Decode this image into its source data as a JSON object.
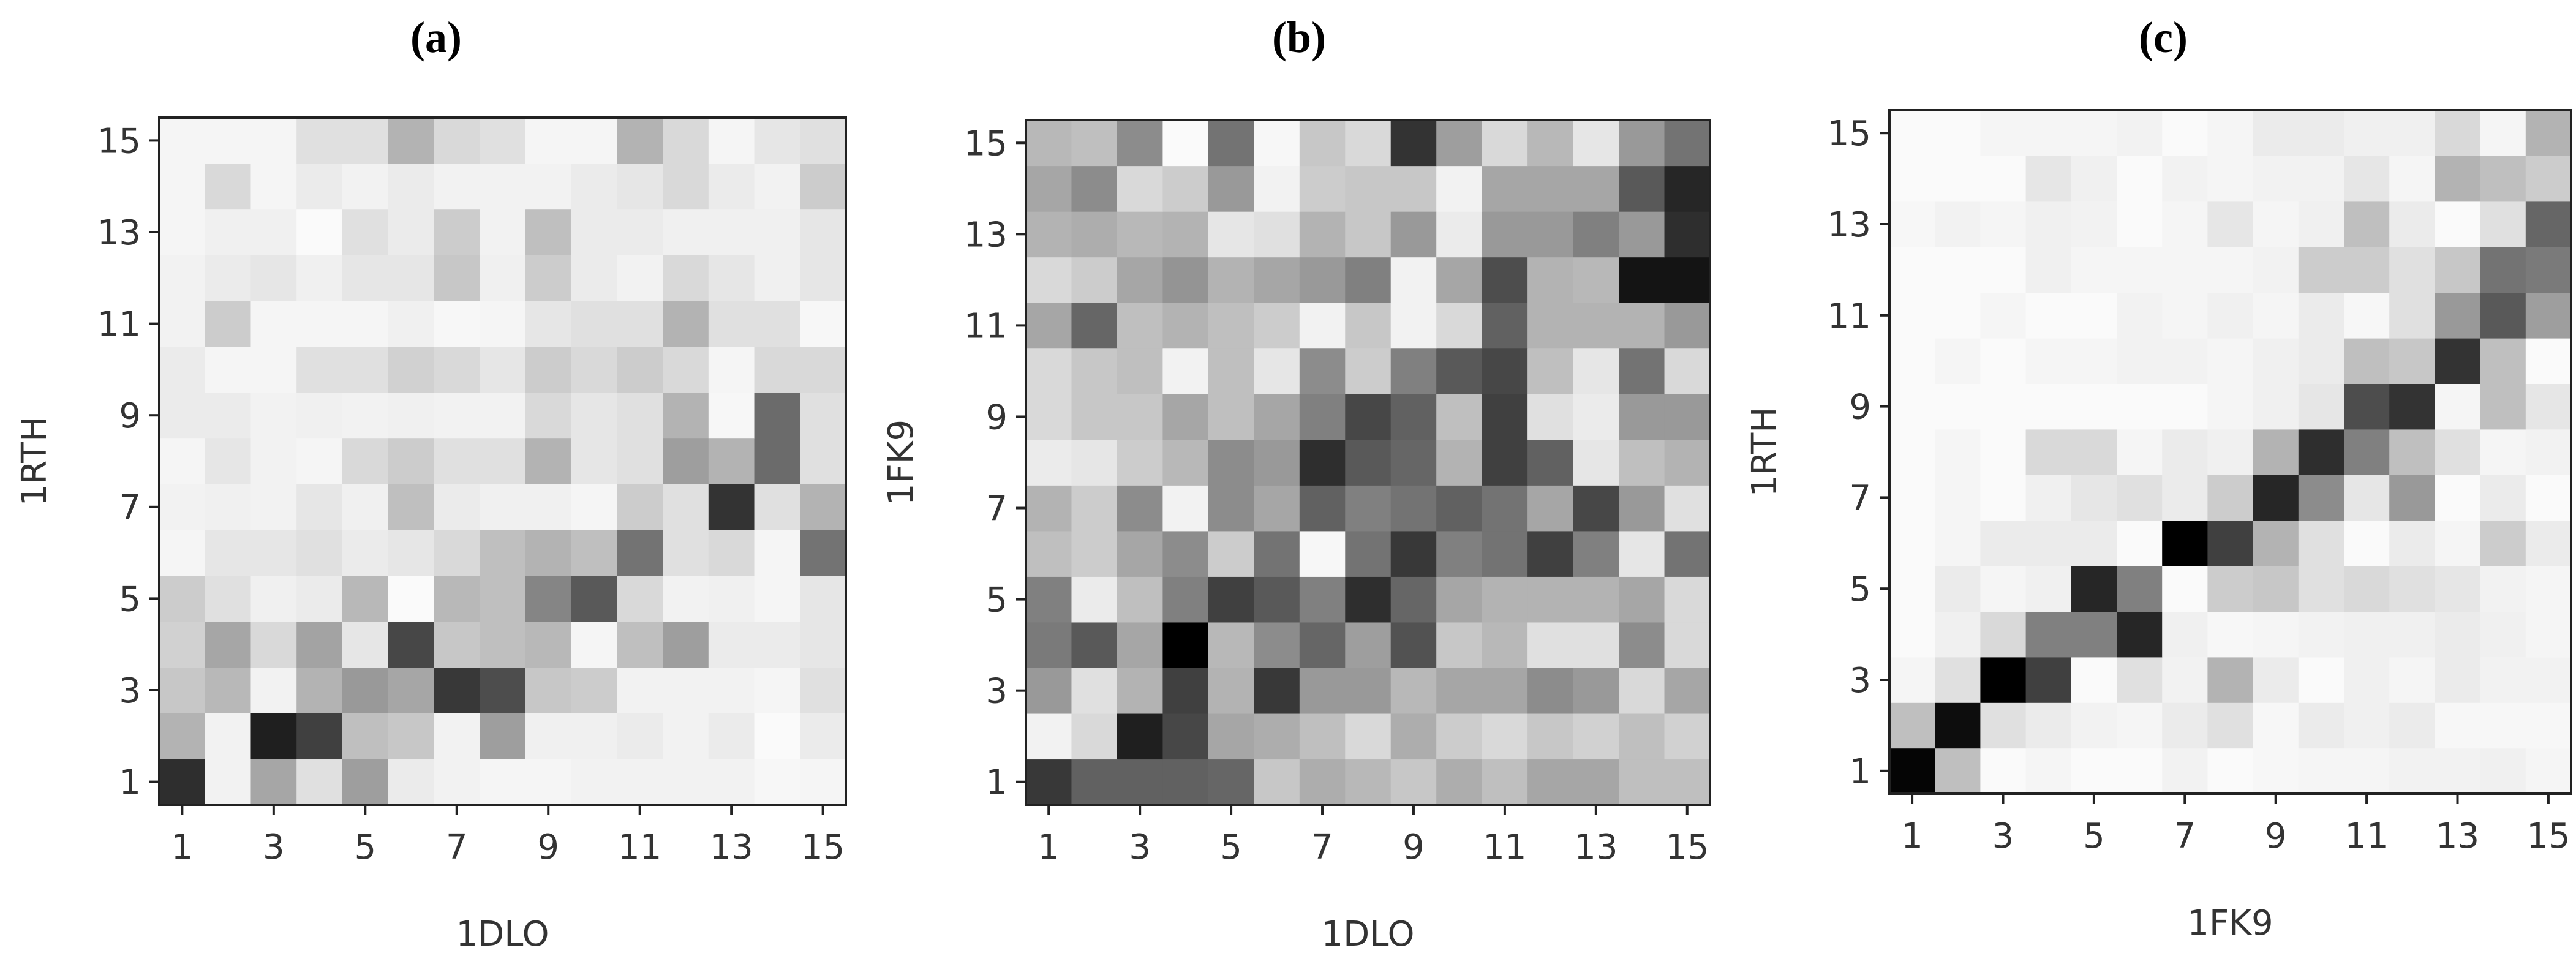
{
  "chart_data": [
    {
      "type": "heatmap",
      "title": "(a)",
      "xlabel": "1DLO",
      "ylabel": "1RTH",
      "x_ticks": [
        "1",
        "3",
        "5",
        "7",
        "9",
        "11",
        "13",
        "15"
      ],
      "y_ticks": [
        "1",
        "3",
        "5",
        "7",
        "9",
        "11",
        "13",
        "15"
      ],
      "colormap": "white-to-black",
      "grid": false,
      "values": [
        [
          0.82,
          0.05,
          0.35,
          0.12,
          0.38,
          0.08,
          0.05,
          0.04,
          0.04,
          0.05,
          0.05,
          0.05,
          0.05,
          0.03,
          0.04
        ],
        [
          0.3,
          0.05,
          0.88,
          0.75,
          0.25,
          0.22,
          0.05,
          0.38,
          0.06,
          0.06,
          0.08,
          0.05,
          0.08,
          0.02,
          0.08
        ],
        [
          0.22,
          0.28,
          0.05,
          0.3,
          0.4,
          0.35,
          0.78,
          0.7,
          0.22,
          0.2,
          0.05,
          0.05,
          0.05,
          0.04,
          0.12
        ],
        [
          0.18,
          0.35,
          0.15,
          0.36,
          0.1,
          0.72,
          0.22,
          0.25,
          0.28,
          0.04,
          0.25,
          0.38,
          0.08,
          0.08,
          0.1
        ],
        [
          0.2,
          0.12,
          0.06,
          0.08,
          0.28,
          0.02,
          0.28,
          0.25,
          0.48,
          0.65,
          0.15,
          0.05,
          0.06,
          0.04,
          0.1
        ],
        [
          0.04,
          0.1,
          0.1,
          0.12,
          0.08,
          0.1,
          0.15,
          0.25,
          0.3,
          0.25,
          0.55,
          0.12,
          0.15,
          0.04,
          0.55
        ],
        [
          0.05,
          0.06,
          0.05,
          0.1,
          0.06,
          0.25,
          0.08,
          0.06,
          0.06,
          0.04,
          0.2,
          0.12,
          0.8,
          0.12,
          0.3
        ],
        [
          0.04,
          0.1,
          0.05,
          0.04,
          0.15,
          0.2,
          0.12,
          0.12,
          0.3,
          0.1,
          0.12,
          0.38,
          0.3,
          0.58,
          0.12
        ],
        [
          0.08,
          0.08,
          0.05,
          0.06,
          0.05,
          0.06,
          0.05,
          0.05,
          0.15,
          0.1,
          0.12,
          0.3,
          0.03,
          0.58,
          0.12
        ],
        [
          0.08,
          0.04,
          0.04,
          0.12,
          0.12,
          0.18,
          0.15,
          0.1,
          0.2,
          0.15,
          0.2,
          0.15,
          0.04,
          0.15,
          0.15
        ],
        [
          0.05,
          0.2,
          0.04,
          0.04,
          0.04,
          0.06,
          0.03,
          0.04,
          0.1,
          0.12,
          0.12,
          0.3,
          0.12,
          0.12,
          0.03
        ],
        [
          0.05,
          0.08,
          0.1,
          0.06,
          0.1,
          0.1,
          0.22,
          0.06,
          0.2,
          0.08,
          0.05,
          0.15,
          0.1,
          0.06,
          0.1
        ],
        [
          0.04,
          0.06,
          0.06,
          0.02,
          0.12,
          0.08,
          0.2,
          0.05,
          0.25,
          0.08,
          0.08,
          0.06,
          0.06,
          0.06,
          0.1
        ],
        [
          0.04,
          0.15,
          0.04,
          0.08,
          0.05,
          0.08,
          0.05,
          0.05,
          0.05,
          0.08,
          0.1,
          0.15,
          0.08,
          0.05,
          0.2
        ],
        [
          0.04,
          0.04,
          0.04,
          0.12,
          0.12,
          0.3,
          0.15,
          0.12,
          0.04,
          0.04,
          0.3,
          0.15,
          0.04,
          0.1,
          0.12
        ]
      ]
    },
    {
      "type": "heatmap",
      "title": "(b)",
      "xlabel": "1DLO",
      "ylabel": "1FK9",
      "x_ticks": [
        "1",
        "3",
        "5",
        "7",
        "9",
        "11",
        "13",
        "15"
      ],
      "y_ticks": [
        "1",
        "3",
        "5",
        "7",
        "9",
        "11",
        "13",
        "15"
      ],
      "colormap": "white-to-black",
      "grid": false,
      "values": [
        [
          0.78,
          0.62,
          0.62,
          0.62,
          0.6,
          0.22,
          0.32,
          0.28,
          0.22,
          0.32,
          0.25,
          0.35,
          0.35,
          0.25,
          0.25
        ],
        [
          0.05,
          0.15,
          0.88,
          0.72,
          0.35,
          0.32,
          0.25,
          0.15,
          0.32,
          0.2,
          0.15,
          0.22,
          0.18,
          0.25,
          0.18
        ],
        [
          0.4,
          0.12,
          0.3,
          0.75,
          0.3,
          0.78,
          0.4,
          0.4,
          0.28,
          0.35,
          0.35,
          0.45,
          0.4,
          0.15,
          0.35
        ],
        [
          0.52,
          0.65,
          0.35,
          1.0,
          0.28,
          0.45,
          0.6,
          0.38,
          0.68,
          0.22,
          0.28,
          0.12,
          0.12,
          0.45,
          0.15
        ],
        [
          0.5,
          0.08,
          0.25,
          0.5,
          0.75,
          0.65,
          0.5,
          0.82,
          0.6,
          0.35,
          0.3,
          0.3,
          0.3,
          0.35,
          0.15
        ],
        [
          0.25,
          0.2,
          0.35,
          0.45,
          0.2,
          0.55,
          0.03,
          0.55,
          0.78,
          0.5,
          0.55,
          0.75,
          0.5,
          0.1,
          0.55
        ],
        [
          0.3,
          0.2,
          0.45,
          0.05,
          0.45,
          0.35,
          0.62,
          0.5,
          0.55,
          0.62,
          0.55,
          0.35,
          0.72,
          0.4,
          0.12
        ],
        [
          0.08,
          0.1,
          0.2,
          0.28,
          0.45,
          0.4,
          0.82,
          0.65,
          0.6,
          0.3,
          0.75,
          0.62,
          0.1,
          0.25,
          0.3
        ],
        [
          0.15,
          0.22,
          0.22,
          0.35,
          0.25,
          0.35,
          0.5,
          0.72,
          0.62,
          0.25,
          0.75,
          0.12,
          0.08,
          0.4,
          0.4
        ],
        [
          0.15,
          0.22,
          0.25,
          0.05,
          0.25,
          0.1,
          0.45,
          0.2,
          0.5,
          0.65,
          0.72,
          0.25,
          0.1,
          0.55,
          0.15
        ],
        [
          0.35,
          0.6,
          0.25,
          0.3,
          0.25,
          0.2,
          0.05,
          0.22,
          0.05,
          0.15,
          0.62,
          0.3,
          0.3,
          0.3,
          0.4
        ],
        [
          0.15,
          0.2,
          0.35,
          0.42,
          0.3,
          0.35,
          0.4,
          0.5,
          0.05,
          0.35,
          0.7,
          0.3,
          0.28,
          0.92,
          0.92
        ],
        [
          0.3,
          0.32,
          0.28,
          0.3,
          0.1,
          0.12,
          0.3,
          0.22,
          0.4,
          0.08,
          0.4,
          0.4,
          0.5,
          0.4,
          0.82
        ],
        [
          0.35,
          0.45,
          0.15,
          0.2,
          0.4,
          0.05,
          0.2,
          0.22,
          0.22,
          0.05,
          0.35,
          0.35,
          0.35,
          0.65,
          0.85
        ],
        [
          0.28,
          0.25,
          0.45,
          0.02,
          0.55,
          0.03,
          0.22,
          0.15,
          0.8,
          0.38,
          0.15,
          0.28,
          0.1,
          0.4,
          0.55
        ]
      ]
    },
    {
      "type": "heatmap",
      "title": "(c)",
      "xlabel": "1FK9",
      "ylabel": "1RTH",
      "x_ticks": [
        "1",
        "3",
        "5",
        "7",
        "9",
        "11",
        "13",
        "15"
      ],
      "y_ticks": [
        "1",
        "3",
        "5",
        "7",
        "9",
        "11",
        "13",
        "15"
      ],
      "colormap": "white-to-black",
      "grid": false,
      "values": [
        [
          0.98,
          0.25,
          0.02,
          0.04,
          0.02,
          0.02,
          0.05,
          0.02,
          0.03,
          0.04,
          0.04,
          0.05,
          0.05,
          0.06,
          0.04
        ],
        [
          0.25,
          0.95,
          0.12,
          0.08,
          0.05,
          0.04,
          0.08,
          0.12,
          0.03,
          0.08,
          0.06,
          0.08,
          0.03,
          0.03,
          0.03
        ],
        [
          0.04,
          0.12,
          1.0,
          0.75,
          0.02,
          0.12,
          0.05,
          0.3,
          0.08,
          0.02,
          0.06,
          0.04,
          0.08,
          0.05,
          0.05
        ],
        [
          0.02,
          0.06,
          0.15,
          0.5,
          0.5,
          0.85,
          0.06,
          0.03,
          0.04,
          0.05,
          0.06,
          0.06,
          0.08,
          0.06,
          0.04
        ],
        [
          0.02,
          0.08,
          0.04,
          0.06,
          0.85,
          0.5,
          0.02,
          0.2,
          0.22,
          0.12,
          0.15,
          0.12,
          0.1,
          0.05,
          0.04
        ],
        [
          0.02,
          0.04,
          0.08,
          0.08,
          0.08,
          0.02,
          1.0,
          0.75,
          0.3,
          0.12,
          0.02,
          0.08,
          0.04,
          0.2,
          0.08
        ],
        [
          0.02,
          0.04,
          0.02,
          0.06,
          0.1,
          0.12,
          0.08,
          0.2,
          0.85,
          0.45,
          0.1,
          0.4,
          0.02,
          0.08,
          0.02
        ],
        [
          0.02,
          0.04,
          0.02,
          0.15,
          0.15,
          0.04,
          0.08,
          0.06,
          0.3,
          0.82,
          0.5,
          0.25,
          0.12,
          0.04,
          0.05
        ],
        [
          0.02,
          0.02,
          0.02,
          0.02,
          0.02,
          0.02,
          0.02,
          0.04,
          0.06,
          0.1,
          0.7,
          0.8,
          0.04,
          0.25,
          0.1
        ],
        [
          0.02,
          0.04,
          0.02,
          0.04,
          0.04,
          0.05,
          0.05,
          0.04,
          0.06,
          0.08,
          0.25,
          0.22,
          0.8,
          0.25,
          0.02
        ],
        [
          0.02,
          0.02,
          0.04,
          0.02,
          0.02,
          0.05,
          0.04,
          0.06,
          0.04,
          0.08,
          0.03,
          0.12,
          0.4,
          0.65,
          0.38
        ],
        [
          0.02,
          0.02,
          0.02,
          0.06,
          0.04,
          0.04,
          0.04,
          0.04,
          0.05,
          0.2,
          0.2,
          0.12,
          0.22,
          0.55,
          0.52
        ],
        [
          0.03,
          0.05,
          0.04,
          0.06,
          0.05,
          0.02,
          0.04,
          0.1,
          0.04,
          0.06,
          0.25,
          0.08,
          0.02,
          0.12,
          0.6
        ],
        [
          0.02,
          0.02,
          0.02,
          0.1,
          0.06,
          0.02,
          0.05,
          0.04,
          0.05,
          0.05,
          0.1,
          0.04,
          0.3,
          0.25,
          0.2
        ],
        [
          0.02,
          0.02,
          0.04,
          0.04,
          0.04,
          0.05,
          0.02,
          0.04,
          0.08,
          0.08,
          0.06,
          0.06,
          0.15,
          0.04,
          0.3
        ]
      ]
    }
  ]
}
